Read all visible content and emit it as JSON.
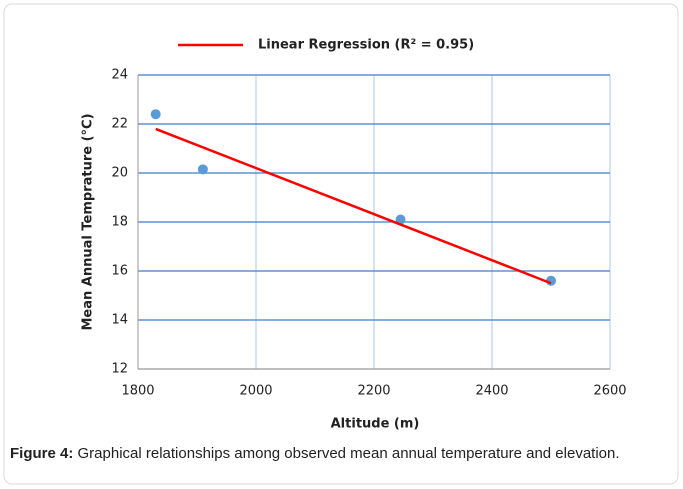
{
  "chart_data": {
    "type": "scatter",
    "xlabel": "Altitude (m)",
    "ylabel": "Mean Annual Temprature (°C)",
    "xlim": [
      1800,
      2600
    ],
    "xticks": [
      1800,
      2000,
      2200,
      2400,
      2600
    ],
    "ylim": [
      12,
      24
    ],
    "yticks": [
      12,
      14,
      16,
      18,
      20,
      22,
      24
    ],
    "grid": true,
    "legend": "top",
    "series": [
      {
        "type": "scatter",
        "color": "#5b9bd5",
        "x": [
          1830,
          1910,
          2245,
          2500
        ],
        "values": [
          22.4,
          20.15,
          18.1,
          15.6
        ]
      },
      {
        "type": "line",
        "name": "Linear Regression (R² = 0.95)",
        "color": "#ff0000",
        "x": [
          1830,
          2500
        ],
        "values": [
          21.8,
          15.5
        ]
      }
    ]
  },
  "caption": {
    "label": "Figure 4:",
    "text": "Graphical relationships among observed mean annual temperature and elevation."
  }
}
